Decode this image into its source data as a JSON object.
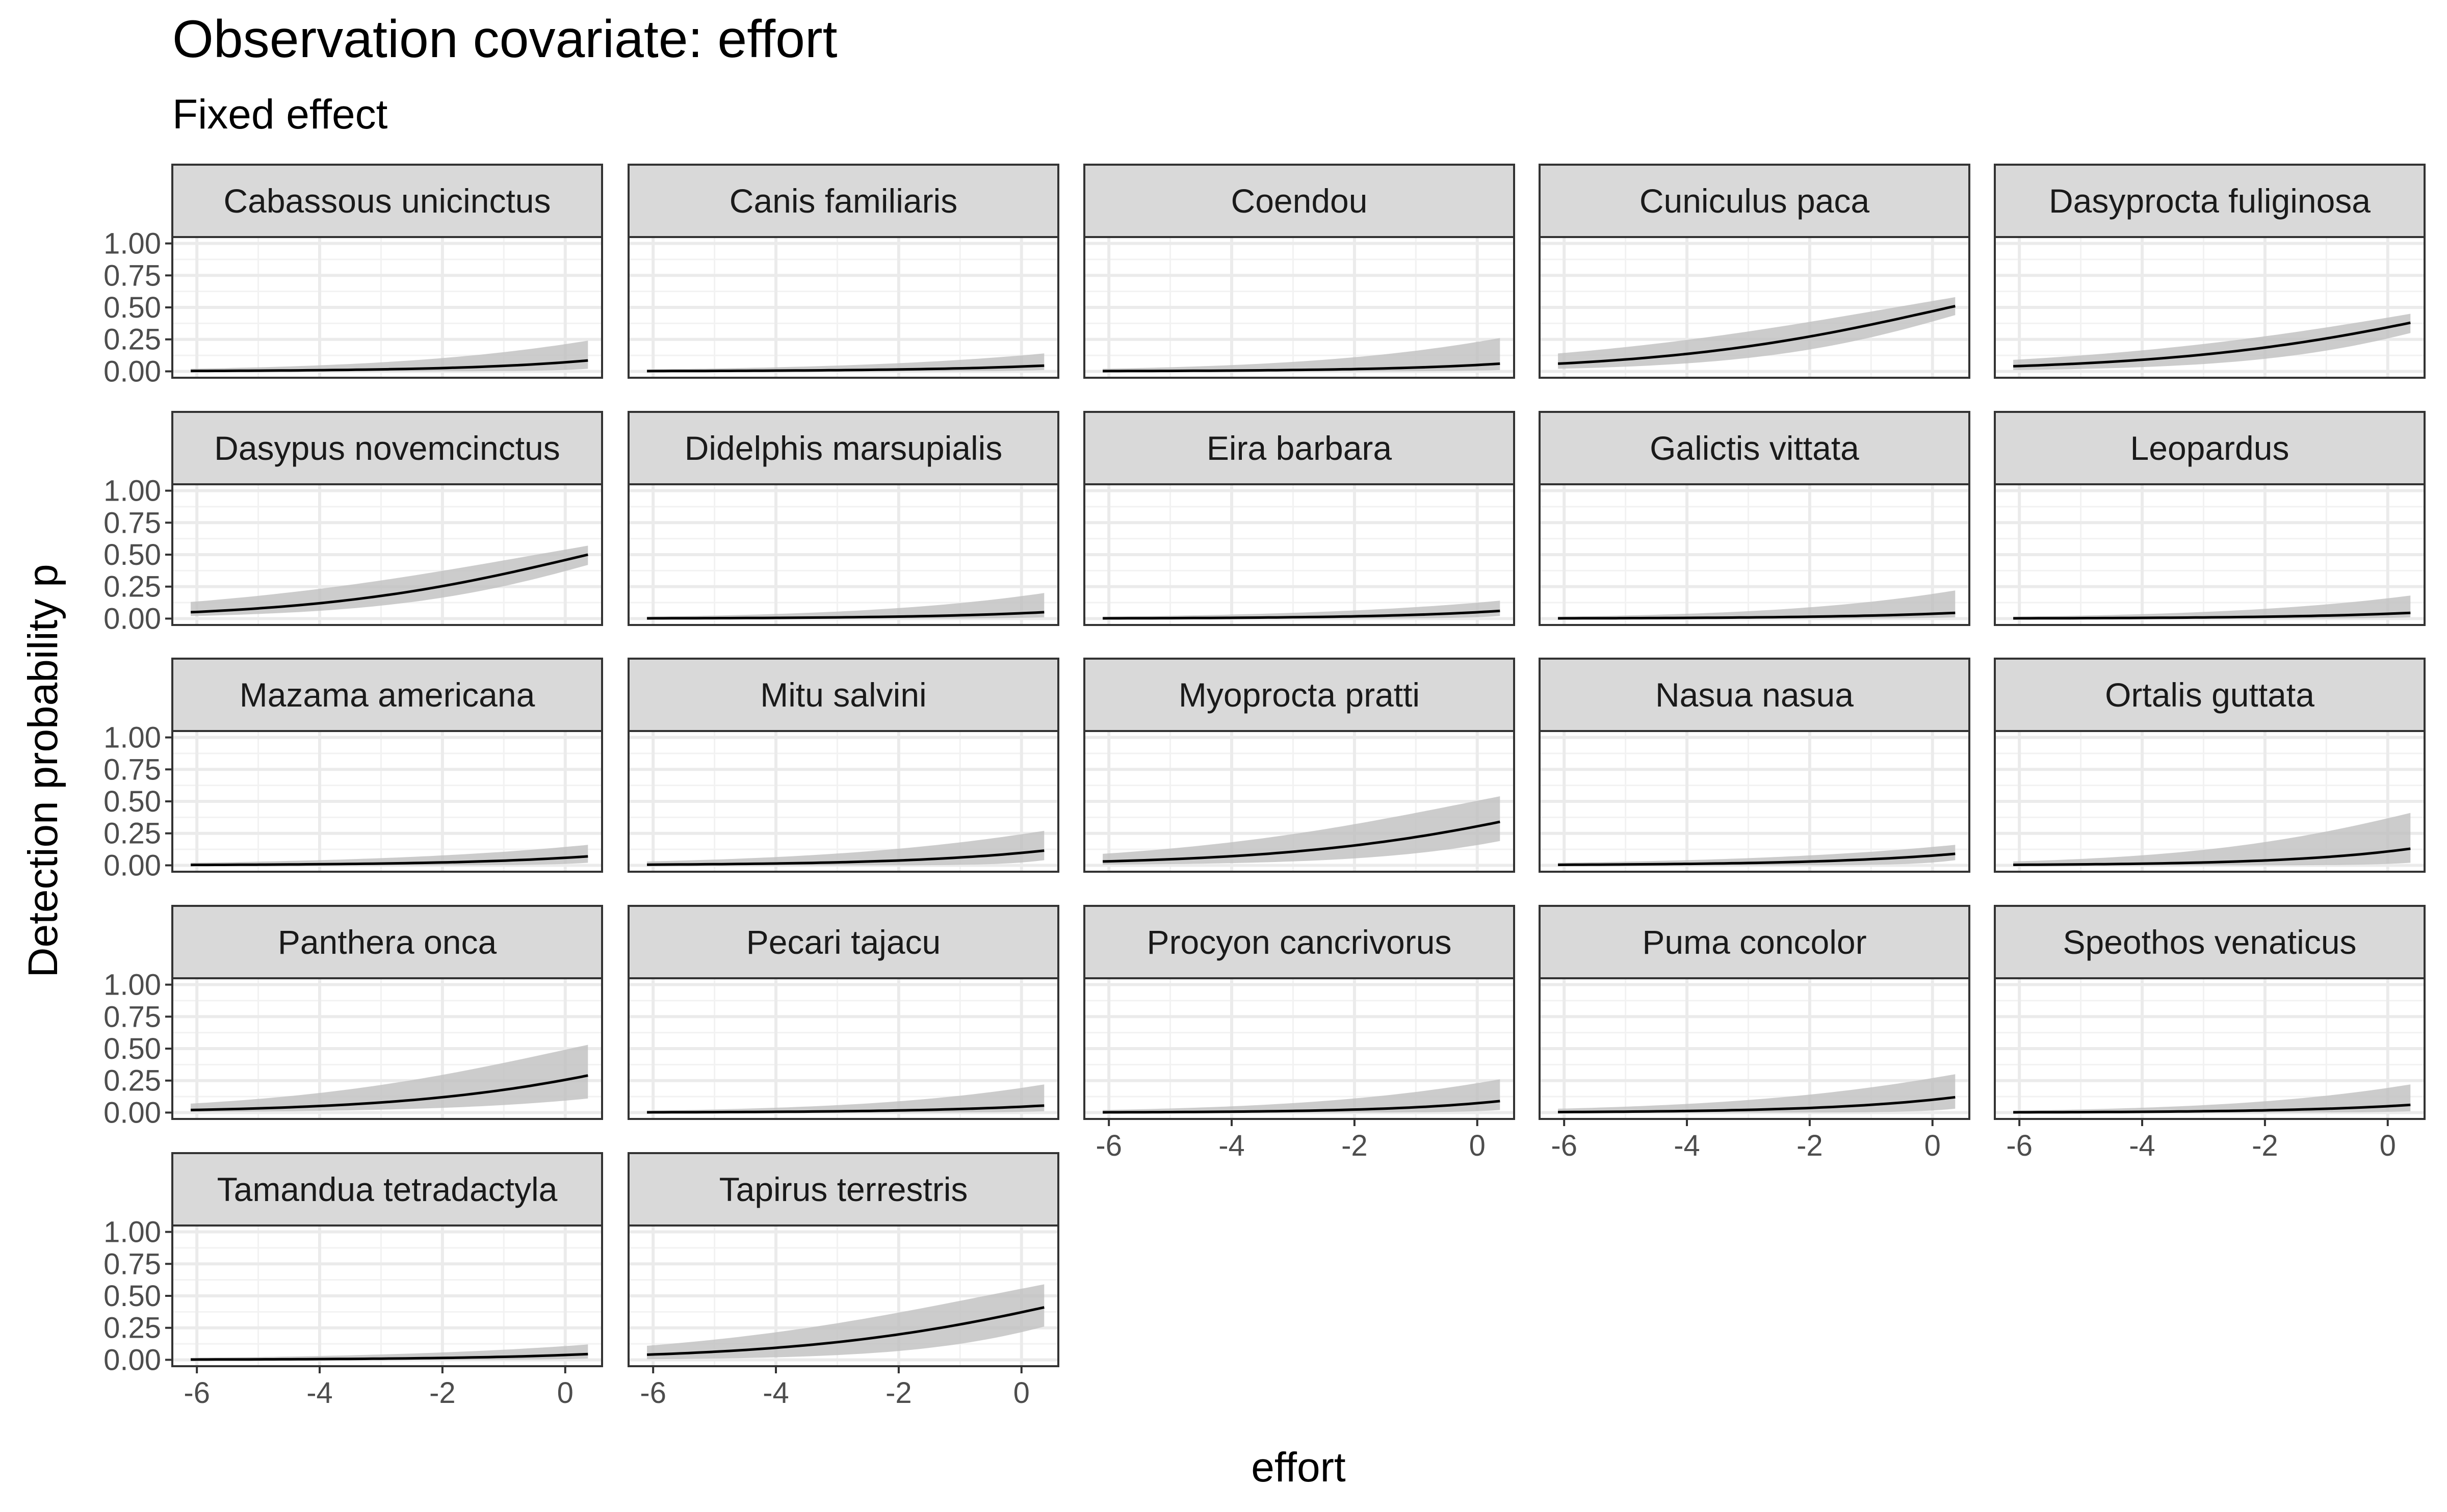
{
  "chart_data": {
    "type": "line",
    "title": "Observation covariate: effort",
    "subtitle": "Fixed effect",
    "xlabel": "effort",
    "ylabel": "Detection probability p",
    "xlim": [
      -6.4,
      0.6
    ],
    "ylim": [
      -0.05,
      1.05
    ],
    "x_ticks": [
      -6,
      -4,
      -2,
      0
    ],
    "x_tick_labels": [
      "-6",
      "-4",
      "-2",
      "0"
    ],
    "y_ticks": [
      0,
      0.25,
      0.5,
      0.75,
      1
    ],
    "y_tick_labels": [
      "0.00",
      "0.25",
      "0.50",
      "0.75",
      "1.00"
    ],
    "grid": true,
    "x": [
      -6.1,
      0.37
    ],
    "series": [
      {
        "name": "Cabassous unicinctus",
        "values": [
          0.003,
          0.085
        ],
        "lower": [
          0.0,
          0.02
        ],
        "upper": [
          0.02,
          0.24
        ]
      },
      {
        "name": "Canis familiaris",
        "values": [
          0.002,
          0.045
        ],
        "lower": [
          0.0,
          0.01
        ],
        "upper": [
          0.015,
          0.14
        ]
      },
      {
        "name": "Coendou",
        "values": [
          0.002,
          0.06
        ],
        "lower": [
          0.0,
          0.01
        ],
        "upper": [
          0.02,
          0.26
        ]
      },
      {
        "name": "Cuniculus paca",
        "values": [
          0.06,
          0.51
        ],
        "lower": [
          0.02,
          0.44
        ],
        "upper": [
          0.14,
          0.58
        ]
      },
      {
        "name": "Dasyprocta fuliginosa",
        "values": [
          0.04,
          0.38
        ],
        "lower": [
          0.01,
          0.3
        ],
        "upper": [
          0.09,
          0.45
        ]
      },
      {
        "name": "Dasypus novemcinctus",
        "values": [
          0.05,
          0.5
        ],
        "lower": [
          0.02,
          0.42
        ],
        "upper": [
          0.13,
          0.57
        ]
      },
      {
        "name": "Didelphis marsupialis",
        "values": [
          0.002,
          0.05
        ],
        "lower": [
          0.0,
          0.01
        ],
        "upper": [
          0.015,
          0.2
        ]
      },
      {
        "name": "Eira barbara",
        "values": [
          0.002,
          0.06
        ],
        "lower": [
          0.0,
          0.02
        ],
        "upper": [
          0.015,
          0.14
        ]
      },
      {
        "name": "Galictis vittata",
        "values": [
          0.002,
          0.045
        ],
        "lower": [
          0.0,
          0.01
        ],
        "upper": [
          0.015,
          0.22
        ]
      },
      {
        "name": "Leopardus",
        "values": [
          0.002,
          0.045
        ],
        "lower": [
          0.0,
          0.01
        ],
        "upper": [
          0.015,
          0.18
        ]
      },
      {
        "name": "Mazama americana",
        "values": [
          0.003,
          0.07
        ],
        "lower": [
          0.0,
          0.02
        ],
        "upper": [
          0.02,
          0.16
        ]
      },
      {
        "name": "Mitu salvini",
        "values": [
          0.005,
          0.115
        ],
        "lower": [
          0.0,
          0.04
        ],
        "upper": [
          0.03,
          0.27
        ]
      },
      {
        "name": "Myoprocta pratti",
        "values": [
          0.03,
          0.34
        ],
        "lower": [
          0.005,
          0.19
        ],
        "upper": [
          0.09,
          0.54
        ]
      },
      {
        "name": "Nasua nasua",
        "values": [
          0.004,
          0.09
        ],
        "lower": [
          0.0,
          0.04
        ],
        "upper": [
          0.02,
          0.16
        ]
      },
      {
        "name": "Ortalis guttata",
        "values": [
          0.004,
          0.13
        ],
        "lower": [
          0.0,
          0.02
        ],
        "upper": [
          0.03,
          0.41
        ]
      },
      {
        "name": "Panthera onca",
        "values": [
          0.02,
          0.29
        ],
        "lower": [
          0.005,
          0.11
        ],
        "upper": [
          0.07,
          0.53
        ]
      },
      {
        "name": "Pecari tajacu",
        "values": [
          0.002,
          0.055
        ],
        "lower": [
          0.0,
          0.01
        ],
        "upper": [
          0.015,
          0.22
        ]
      },
      {
        "name": "Procyon cancrivorus",
        "values": [
          0.002,
          0.09
        ],
        "lower": [
          0.0,
          0.02
        ],
        "upper": [
          0.02,
          0.26
        ]
      },
      {
        "name": "Puma concolor",
        "values": [
          0.004,
          0.12
        ],
        "lower": [
          0.0,
          0.03
        ],
        "upper": [
          0.03,
          0.3
        ]
      },
      {
        "name": "Speothos venaticus",
        "values": [
          0.002,
          0.06
        ],
        "lower": [
          0.0,
          0.01
        ],
        "upper": [
          0.015,
          0.22
        ]
      },
      {
        "name": "Tamandua tetradactyla",
        "values": [
          0.002,
          0.045
        ],
        "lower": [
          0.0,
          0.01
        ],
        "upper": [
          0.015,
          0.12
        ]
      },
      {
        "name": "Tapirus terrestris",
        "values": [
          0.04,
          0.41
        ],
        "lower": [
          0.005,
          0.26
        ],
        "upper": [
          0.11,
          0.59
        ]
      }
    ],
    "colors": {
      "line": "#000000",
      "ribbon": "#bfbfbf",
      "strip": "#d9d9d9",
      "panel_border": "#333333",
      "grid_major": "#ebebeb",
      "axis_text": "#4d4d4d"
    }
  }
}
